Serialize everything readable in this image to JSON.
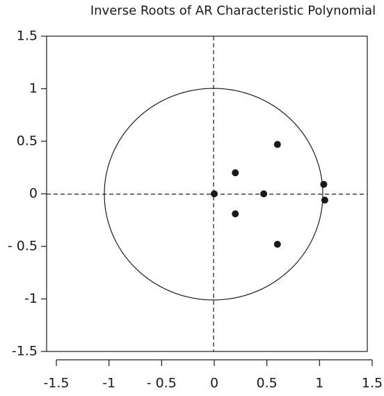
{
  "chart_data": {
    "type": "scatter",
    "title": "Inverse Roots of AR Characteristic Polynomial",
    "x": [
      0,
      0.2,
      0.2,
      0.47,
      0.6,
      0.6,
      1.04,
      1.05
    ],
    "values": [
      0,
      0.2,
      -0.19,
      0,
      0.47,
      -0.48,
      0.09,
      -0.06
    ],
    "color": "#1a1a1a",
    "xlim": [
      -1.5,
      1.5
    ],
    "ylim": [
      -1.5,
      1.5
    ],
    "xticks": [
      -1.5,
      -1,
      {
        "value": -0.5,
        "label": "- 0.5"
      },
      0,
      0.5,
      1,
      1.5
    ],
    "yticks": [
      1.5,
      1,
      0.5,
      0,
      {
        "value": -0.5,
        "label": "- 0.5"
      },
      -1,
      -1.5
    ]
  }
}
